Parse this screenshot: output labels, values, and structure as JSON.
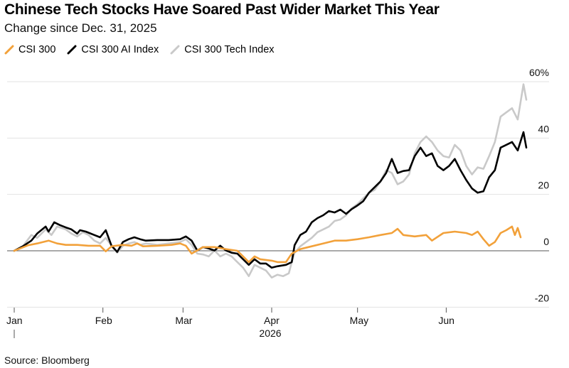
{
  "title": "Chinese Tech Stocks Have Soared Past Wider Market This Year",
  "subtitle": "Change since Dec. 31, 2025",
  "source": "Source: Bloomberg",
  "colors": {
    "csi300": "#f2a13a",
    "ai": "#000000",
    "tech": "#c9c9c9",
    "grid": "#e2e2e2",
    "zero": "#555555"
  },
  "chart_data": {
    "type": "line",
    "x_range": [
      0,
      174
    ],
    "ylim": [
      -20,
      60
    ],
    "y_ticks": [
      60,
      40,
      20,
      0,
      -20
    ],
    "y_tick_labels": [
      "60%",
      "40",
      "20",
      "0",
      "-20"
    ],
    "x_ticks": [
      {
        "label": "Jan",
        "x": 0
      },
      {
        "label": "Feb",
        "x": 31
      },
      {
        "label": "Mar",
        "x": 59
      },
      {
        "label": "Apr",
        "x": 90
      },
      {
        "label": "May",
        "x": 120
      },
      {
        "label": "Jun",
        "x": 151
      }
    ],
    "year_label": "2026",
    "legend_position": "top-left",
    "grid": true,
    "series": [
      {
        "name": "CSI 300",
        "key": "csi300",
        "points": [
          [
            0,
            0
          ],
          [
            5,
            2
          ],
          [
            8,
            2.6
          ],
          [
            12,
            3.6
          ],
          [
            15,
            2.6
          ],
          [
            18,
            2.1
          ],
          [
            22,
            2.1
          ],
          [
            26,
            1.8
          ],
          [
            30,
            1.8
          ],
          [
            32,
            -0.2
          ],
          [
            34,
            1.6
          ],
          [
            38,
            2.1
          ],
          [
            41,
            1.8
          ],
          [
            43,
            2.6
          ],
          [
            45,
            1.6
          ],
          [
            50,
            1.8
          ],
          [
            55,
            2.1
          ],
          [
            58,
            2.6
          ],
          [
            60,
            1.8
          ],
          [
            62,
            -1
          ],
          [
            66,
            1.3
          ],
          [
            70,
            1.3
          ],
          [
            74,
            0.6
          ],
          [
            78,
            0
          ],
          [
            80,
            -2
          ],
          [
            82,
            -4
          ],
          [
            84,
            -2
          ],
          [
            86,
            -3
          ],
          [
            90,
            -3.5
          ],
          [
            92,
            -4
          ],
          [
            95,
            -4
          ],
          [
            97,
            -1
          ],
          [
            100,
            0.6
          ],
          [
            104,
            1.6
          ],
          [
            108,
            2.6
          ],
          [
            112,
            3.6
          ],
          [
            116,
            3.6
          ],
          [
            120,
            4.1
          ],
          [
            124,
            4.8
          ],
          [
            128,
            5.6
          ],
          [
            132,
            6.3
          ],
          [
            134,
            7.8
          ],
          [
            136,
            5.6
          ],
          [
            140,
            5.1
          ],
          [
            144,
            5.6
          ],
          [
            146,
            3.6
          ],
          [
            150,
            6.3
          ],
          [
            154,
            6.8
          ],
          [
            158,
            6.3
          ],
          [
            160,
            5.6
          ],
          [
            162,
            6.8
          ],
          [
            164,
            4.1
          ],
          [
            166,
            1.8
          ],
          [
            168,
            3.1
          ],
          [
            170,
            6.3
          ],
          [
            172,
            7.3
          ],
          [
            174,
            8.6
          ],
          [
            175,
            5.6
          ],
          [
            176,
            8.1
          ],
          [
            177,
            4.8
          ]
        ]
      },
      {
        "name": "CSI 300 AI Index",
        "key": "ai",
        "points": [
          [
            0,
            0
          ],
          [
            3,
            1.6
          ],
          [
            6,
            3.6
          ],
          [
            8,
            6.1
          ],
          [
            11,
            8.6
          ],
          [
            12,
            6.8
          ],
          [
            14,
            10.1
          ],
          [
            16,
            9.1
          ],
          [
            18,
            8.3
          ],
          [
            20,
            7.6
          ],
          [
            22,
            6.1
          ],
          [
            23,
            7.3
          ],
          [
            25,
            6.8
          ],
          [
            28,
            5.6
          ],
          [
            30,
            4.8
          ],
          [
            32,
            7.3
          ],
          [
            34,
            1.8
          ],
          [
            36,
            -0.4
          ],
          [
            38,
            3.1
          ],
          [
            40,
            4.1
          ],
          [
            42,
            4.8
          ],
          [
            44,
            4.1
          ],
          [
            46,
            3.6
          ],
          [
            50,
            3.8
          ],
          [
            54,
            3.8
          ],
          [
            58,
            4.1
          ],
          [
            60,
            5.1
          ],
          [
            62,
            3.6
          ],
          [
            64,
            0.1
          ],
          [
            66,
            1.3
          ],
          [
            68,
            0.8
          ],
          [
            70,
            0.1
          ],
          [
            72,
            1.8
          ],
          [
            74,
            0.1
          ],
          [
            76,
            -0.7
          ],
          [
            78,
            -1
          ],
          [
            80,
            -3
          ],
          [
            82,
            -5
          ],
          [
            84,
            -3
          ],
          [
            86,
            -4.5
          ],
          [
            88,
            -4.5
          ],
          [
            90,
            -6
          ],
          [
            92,
            -5.5
          ],
          [
            95,
            -5
          ],
          [
            97,
            -4
          ],
          [
            98,
            2
          ],
          [
            100,
            5.6
          ],
          [
            102,
            6.8
          ],
          [
            104,
            10.1
          ],
          [
            106,
            11.6
          ],
          [
            108,
            12.6
          ],
          [
            110,
            14.1
          ],
          [
            112,
            13.6
          ],
          [
            114,
            14.6
          ],
          [
            116,
            13.1
          ],
          [
            118,
            14.8
          ],
          [
            120,
            16.1
          ],
          [
            122,
            17.6
          ],
          [
            124,
            20.6
          ],
          [
            126,
            22.6
          ],
          [
            128,
            24.6
          ],
          [
            130,
            27.6
          ],
          [
            132,
            32.6
          ],
          [
            134,
            27.6
          ],
          [
            136,
            28.3
          ],
          [
            138,
            28.6
          ],
          [
            140,
            33.6
          ],
          [
            142,
            36.6
          ],
          [
            144,
            33.6
          ],
          [
            146,
            34.6
          ],
          [
            148,
            30.1
          ],
          [
            150,
            28.6
          ],
          [
            152,
            30.1
          ],
          [
            154,
            32.6
          ],
          [
            156,
            28.6
          ],
          [
            158,
            25.1
          ],
          [
            160,
            22.1
          ],
          [
            162,
            20.6
          ],
          [
            164,
            21.1
          ],
          [
            166,
            26.1
          ],
          [
            168,
            28.6
          ],
          [
            170,
            36.6
          ],
          [
            172,
            37.6
          ],
          [
            174,
            38.6
          ],
          [
            176,
            35.6
          ],
          [
            178,
            42.1
          ],
          [
            179,
            36.6
          ]
        ]
      },
      {
        "name": "CSI 300 Tech Index",
        "key": "tech",
        "points": [
          [
            0,
            0
          ],
          [
            3,
            1.6
          ],
          [
            6,
            5.6
          ],
          [
            8,
            4.6
          ],
          [
            11,
            7.6
          ],
          [
            13,
            5.6
          ],
          [
            15,
            8.6
          ],
          [
            18,
            7.6
          ],
          [
            20,
            6.1
          ],
          [
            22,
            5.1
          ],
          [
            24,
            6.6
          ],
          [
            26,
            5.6
          ],
          [
            28,
            3.6
          ],
          [
            30,
            2.6
          ],
          [
            32,
            4.6
          ],
          [
            34,
            1.8
          ],
          [
            36,
            -0.7
          ],
          [
            38,
            1.8
          ],
          [
            40,
            2.6
          ],
          [
            42,
            3.1
          ],
          [
            44,
            2.1
          ],
          [
            46,
            2.6
          ],
          [
            50,
            2.1
          ],
          [
            54,
            2.6
          ],
          [
            58,
            3.1
          ],
          [
            60,
            4.1
          ],
          [
            62,
            2.1
          ],
          [
            64,
            -1
          ],
          [
            66,
            -1.3
          ],
          [
            68,
            -2
          ],
          [
            70,
            0.1
          ],
          [
            72,
            -2
          ],
          [
            74,
            -1
          ],
          [
            76,
            -2
          ],
          [
            78,
            -4
          ],
          [
            80,
            -6
          ],
          [
            82,
            -9
          ],
          [
            84,
            -5
          ],
          [
            86,
            -6
          ],
          [
            88,
            -7
          ],
          [
            90,
            -9.5
          ],
          [
            92,
            -8.5
          ],
          [
            94,
            -9
          ],
          [
            96,
            -8
          ],
          [
            97,
            -4
          ],
          [
            98,
            -0.7
          ],
          [
            100,
            1.6
          ],
          [
            102,
            3.1
          ],
          [
            104,
            4.6
          ],
          [
            106,
            6.6
          ],
          [
            108,
            7.6
          ],
          [
            110,
            8.6
          ],
          [
            112,
            10.6
          ],
          [
            114,
            11.1
          ],
          [
            116,
            12.6
          ],
          [
            118,
            15.1
          ],
          [
            120,
            16.6
          ],
          [
            122,
            18.6
          ],
          [
            124,
            20.6
          ],
          [
            126,
            21.6
          ],
          [
            128,
            24.6
          ],
          [
            130,
            28.6
          ],
          [
            132,
            27.6
          ],
          [
            134,
            23.6
          ],
          [
            136,
            24.6
          ],
          [
            138,
            27.1
          ],
          [
            140,
            34.6
          ],
          [
            142,
            38.6
          ],
          [
            144,
            40.6
          ],
          [
            146,
            38.6
          ],
          [
            148,
            35.6
          ],
          [
            150,
            33.6
          ],
          [
            152,
            33.1
          ],
          [
            154,
            37.6
          ],
          [
            156,
            35.6
          ],
          [
            158,
            30.1
          ],
          [
            160,
            27.1
          ],
          [
            162,
            29.6
          ],
          [
            164,
            29.1
          ],
          [
            166,
            33.6
          ],
          [
            168,
            38.6
          ],
          [
            170,
            47.6
          ],
          [
            172,
            49.1
          ],
          [
            174,
            50.6
          ],
          [
            176,
            46.6
          ],
          [
            178,
            59.1
          ],
          [
            179,
            53.6
          ]
        ]
      }
    ]
  }
}
